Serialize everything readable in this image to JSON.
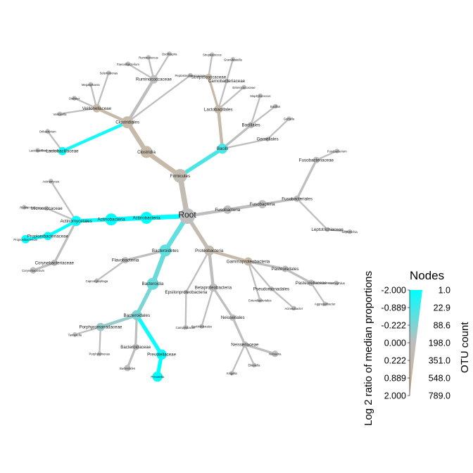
{
  "legend": {
    "title": "Nodes",
    "color_axis_label": "Log 2 ratio of median proportions",
    "size_axis_label": "OTU count",
    "color_ticks": [
      "-2.000",
      "-0.889",
      "-0.222",
      "0.000",
      "0.222",
      "0.889",
      "2.000"
    ],
    "size_ticks": [
      "1.0",
      "22.9",
      "88.6",
      "198.0",
      "351.0",
      "548.0",
      "789.0"
    ],
    "colors": {
      "low": "#00ffff",
      "mid": "#bebebe",
      "high": "#d2b48c"
    }
  },
  "tree": {
    "root": "Root",
    "nodes": [
      {
        "id": "root",
        "label": "Root",
        "parent": null,
        "v": 0.0,
        "w": 7
      },
      {
        "id": "firmicutes",
        "label": "Firmicutes",
        "parent": "root",
        "v": 0.5,
        "w": 6
      },
      {
        "id": "clostridia",
        "label": "Clostridia",
        "parent": "firmicutes",
        "v": 0.9,
        "w": 5
      },
      {
        "id": "clostridiales",
        "label": "Clostridiales",
        "parent": "clostridia",
        "v": 0.8,
        "w": 5
      },
      {
        "id": "lactobacillaceae",
        "label": "Lactobacillaceae",
        "parent": "clostridiales",
        "v": -1.8,
        "w": 3
      },
      {
        "id": "veillonellaceae",
        "label": "Veillonellaceae",
        "parent": "clostridiales",
        "v": 0.9,
        "w": 3
      },
      {
        "id": "ruminococcaceae",
        "label": "Ruminococcaceae",
        "parent": "clostridiales",
        "v": 0.0,
        "w": 3
      },
      {
        "id": "peptostreptococcaceae",
        "label": "Peptostreptococcaceae",
        "parent": "clostridiales",
        "v": 0.0,
        "w": 1
      },
      {
        "id": "bacilli",
        "label": "Bacilli",
        "parent": "firmicutes",
        "v": -1.2,
        "w": 4
      },
      {
        "id": "lactobacillales",
        "label": "Lactobacillales",
        "parent": "bacilli",
        "v": 0.8,
        "w": 3
      },
      {
        "id": "bacillales",
        "label": "Bacillales",
        "parent": "bacilli",
        "v": 0.0,
        "w": 2
      },
      {
        "id": "streptococcaceae",
        "label": "Streptococcaceae",
        "parent": "lactobacillales",
        "v": 0.9,
        "w": 2
      },
      {
        "id": "carnobacteriaceae",
        "label": "Carnobacteriaceae",
        "parent": "lactobacillales",
        "v": 0.0,
        "w": 1
      },
      {
        "id": "enterococcaceae",
        "label": "Enterococcaceae",
        "parent": "lactobacillales",
        "v": 0.0,
        "w": 1
      },
      {
        "id": "gemellales",
        "label": "Gemellales",
        "parent": "bacilli",
        "v": 0.0,
        "w": 1
      },
      {
        "id": "actinobacteria_p",
        "label": "Actinobacteria",
        "parent": "root",
        "v": -2.0,
        "w": 5
      },
      {
        "id": "actinobacteria_c",
        "label": "Actinobacteria",
        "parent": "actinobacteria_p",
        "v": -2.0,
        "w": 5
      },
      {
        "id": "actinomycetales",
        "label": "Actinomycetales",
        "parent": "actinobacteria_c",
        "v": -1.9,
        "w": 4
      },
      {
        "id": "corynebacteriaceae",
        "label": "Corynebacteriaceae",
        "parent": "actinomycetales",
        "v": 0.0,
        "w": 2
      },
      {
        "id": "corynebacterium",
        "label": "Corynebacterium",
        "parent": "corynebacteriaceae",
        "v": 0.0,
        "w": 2
      },
      {
        "id": "propionibacteriaceae",
        "label": "Propionibacteriaceae",
        "parent": "actinomycetales",
        "v": -2.0,
        "w": 3
      },
      {
        "id": "propionibacterium",
        "label": "Propionibacterium",
        "parent": "propionibacteriaceae",
        "v": -2.0,
        "w": 3
      },
      {
        "id": "micrococcaceae",
        "label": "Micrococcaceae",
        "parent": "actinomycetales",
        "v": 0.0,
        "w": 1
      },
      {
        "id": "bacteroidetes",
        "label": "Bacteroidetes",
        "parent": "root",
        "v": -1.0,
        "w": 5
      },
      {
        "id": "bacteroidia",
        "label": "Bacteroidia",
        "parent": "bacteroidetes",
        "v": -0.9,
        "w": 5
      },
      {
        "id": "bacteroidales",
        "label": "Bacteroidales",
        "parent": "bacteroidia",
        "v": -0.7,
        "w": 4
      },
      {
        "id": "prevotellaceae",
        "label": "Prevotellaceae",
        "parent": "bacteroidales",
        "v": -1.9,
        "w": 4
      },
      {
        "id": "prevotella",
        "label": "Prevotella",
        "parent": "prevotellaceae",
        "v": -2.0,
        "w": 4
      },
      {
        "id": "bacteroidaceae",
        "label": "Bacteroidaceae",
        "parent": "bacteroidales",
        "v": 0.0,
        "w": 2
      },
      {
        "id": "bacteroides",
        "label": "Bacteroides",
        "parent": "bacteroidaceae",
        "v": 0.0,
        "w": 2
      },
      {
        "id": "porphyromonadaceae",
        "label": "Porphyromonadaceae",
        "parent": "bacteroidales",
        "v": -0.4,
        "w": 3
      },
      {
        "id": "flavobacteriia",
        "label": "Flavobacteriia",
        "parent": "bacteroidetes",
        "v": 0.0,
        "w": 2
      },
      {
        "id": "proteobacteria",
        "label": "Proteobacteria",
        "parent": "root",
        "v": 0.5,
        "w": 4
      },
      {
        "id": "gammaproteobacteria",
        "label": "Gammaproteobacteria",
        "parent": "proteobacteria",
        "v": 0.9,
        "w": 3
      },
      {
        "id": "pasteurellales",
        "label": "Pasteurellales",
        "parent": "gammaproteobacteria",
        "v": 0.0,
        "w": 2
      },
      {
        "id": "pasteurellaceae",
        "label": "Pasteurellaceae",
        "parent": "pasteurellales",
        "v": 0.0,
        "w": 2
      },
      {
        "id": "pseudomonadales",
        "label": "Pseudomonadales",
        "parent": "gammaproteobacteria",
        "v": 0.0,
        "w": 1
      },
      {
        "id": "enterobacteriales",
        "label": "Enterobacteriales",
        "parent": "gammaproteobacteria",
        "v": 0.0,
        "w": 1
      },
      {
        "id": "betaproteobacteria",
        "label": "Betaproteobacteria",
        "parent": "proteobacteria",
        "v": 0.0,
        "w": 3
      },
      {
        "id": "neisseriales",
        "label": "Neisseriales",
        "parent": "betaproteobacteria",
        "v": 0.0,
        "w": 2
      },
      {
        "id": "neisseriaceae",
        "label": "Neisseriaceae",
        "parent": "neisseriales",
        "v": 0.0,
        "w": 2
      },
      {
        "id": "neisseria",
        "label": "Neisseria",
        "parent": "neisseriaceae",
        "v": 0.0,
        "w": 2
      },
      {
        "id": "burkholderiales",
        "label": "Burkholderiales",
        "parent": "betaproteobacteria",
        "v": 0.0,
        "w": 1
      },
      {
        "id": "epsilonproteobacteria",
        "label": "Epsilonproteobacteria",
        "parent": "proteobacteria",
        "v": 0.0,
        "w": 1
      },
      {
        "id": "fusobacteria_p",
        "label": "Fusobacteria",
        "parent": "root",
        "v": 0.0,
        "w": 3
      },
      {
        "id": "fusobacteria_c",
        "label": "Fusobacteria",
        "parent": "fusobacteria_p",
        "v": 0.0,
        "w": 3
      },
      {
        "id": "fusobacteriales",
        "label": "Fusobacteriales",
        "parent": "fusobacteria_c",
        "v": 0.0,
        "w": 2
      },
      {
        "id": "fusobacteriaceae",
        "label": "Fusobacteriaceae",
        "parent": "fusobacteriales",
        "v": 0.0,
        "w": 2
      },
      {
        "id": "fusobacterium",
        "label": "Fusobacterium",
        "parent": "fusobacteriaceae",
        "v": 0.0,
        "w": 1
      },
      {
        "id": "leptotrichiaceae",
        "label": "Leptotrichiaceae",
        "parent": "fusobacteriales",
        "v": 0.0,
        "w": 1
      },
      {
        "id": "veillonella",
        "label": "Veillonella",
        "parent": "veillonellaceae",
        "v": 0.0,
        "w": 1
      },
      {
        "id": "dialister",
        "label": "Dialister",
        "parent": "veillonellaceae",
        "v": 0.0,
        "w": 1
      },
      {
        "id": "megasphaera",
        "label": "Megasphaera",
        "parent": "veillonellaceae",
        "v": 0.0,
        "w": 1
      },
      {
        "id": "selenomonas",
        "label": "Selenomonas",
        "parent": "veillonellaceae",
        "v": 0.0,
        "w": 1
      },
      {
        "id": "lactobacillus",
        "label": "Lactobacillus",
        "parent": "lactobacillaceae",
        "v": 0.0,
        "w": 1
      },
      {
        "id": "oribacterium",
        "label": "Oribacterium",
        "parent": "lactobacillaceae",
        "v": 0.0,
        "w": 1
      },
      {
        "id": "faecalibacterium",
        "label": "Faecalibacterium",
        "parent": "ruminococcaceae",
        "v": 0.0,
        "w": 1
      },
      {
        "id": "ruminococcus",
        "label": "Ruminococcus",
        "parent": "ruminococcaceae",
        "v": 0.0,
        "w": 1
      },
      {
        "id": "oscillospira",
        "label": "Oscillospira",
        "parent": "ruminococcaceae",
        "v": 0.0,
        "w": 1
      },
      {
        "id": "streptococcus",
        "label": "Streptococcus",
        "parent": "streptococcaceae",
        "v": 0.0,
        "w": 1
      },
      {
        "id": "granulicatella",
        "label": "Granulicatella",
        "parent": "carnobacteriaceae",
        "v": 0.0,
        "w": 1
      },
      {
        "id": "gemella",
        "label": "Gemella",
        "parent": "gemellales",
        "v": 0.0,
        "w": 1
      },
      {
        "id": "staphylococcus",
        "label": "Staphylococcus",
        "parent": "bacillales",
        "v": 0.0,
        "w": 1
      },
      {
        "id": "bacillus",
        "label": "Bacillus",
        "parent": "bacillales",
        "v": 0.0,
        "w": 1
      },
      {
        "id": "rothia",
        "label": "Rothia",
        "parent": "micrococcaceae",
        "v": 0.0,
        "w": 1
      },
      {
        "id": "actinomyces",
        "label": "Actinomyces",
        "parent": "actinomycetales",
        "v": 0.0,
        "w": 1
      },
      {
        "id": "porphyromonas",
        "label": "Porphyromonas",
        "parent": "porphyromonadaceae",
        "v": 0.0,
        "w": 1
      },
      {
        "id": "tannerella",
        "label": "Tannerella",
        "parent": "porphyromonadaceae",
        "v": 0.0,
        "w": 1
      },
      {
        "id": "capnocytophaga",
        "label": "Capnocytophaga",
        "parent": "flavobacteriia",
        "v": 0.0,
        "w": 1
      },
      {
        "id": "haemophilus",
        "label": "Haemophilus",
        "parent": "pasteurellaceae",
        "v": 0.0,
        "w": 1
      },
      {
        "id": "aggregatibacter",
        "label": "Aggregatibacter",
        "parent": "pasteurellaceae",
        "v": 0.0,
        "w": 1
      },
      {
        "id": "eikenella",
        "label": "Eikenella",
        "parent": "neisseriaceae",
        "v": 0.0,
        "w": 1
      },
      {
        "id": "kingella",
        "label": "Kingella",
        "parent": "neisseriaceae",
        "v": 0.0,
        "w": 1
      },
      {
        "id": "campylobacter",
        "label": "Campylobacter",
        "parent": "epsilonproteobacteria",
        "v": 0.0,
        "w": 1
      },
      {
        "id": "leptotrichia",
        "label": "Leptotrichia",
        "parent": "leptotrichiaceae",
        "v": 0.0,
        "w": 1
      },
      {
        "id": "acinetobacter",
        "label": "Acinetobacter",
        "parent": "pseudomonadales",
        "v": 0.0,
        "w": 1
      }
    ]
  }
}
